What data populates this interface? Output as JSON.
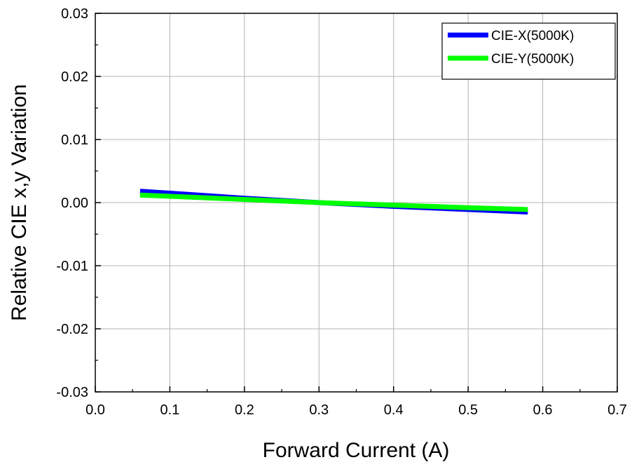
{
  "chart_data": {
    "type": "line",
    "title": "",
    "xlabel": "Forward Current (A)",
    "ylabel": "Relative CIE x,y Variation",
    "xlim": [
      0.0,
      0.7
    ],
    "ylim": [
      -0.03,
      0.03
    ],
    "x_ticks": [
      "0.0",
      "0.1",
      "0.2",
      "0.3",
      "0.4",
      "0.5",
      "0.6",
      "0.7"
    ],
    "y_ticks": [
      "-0.03",
      "-0.02",
      "-0.01",
      "0.00",
      "0.01",
      "0.02",
      "0.03"
    ],
    "grid": true,
    "legend_position": "top-right",
    "series": [
      {
        "name": "CIE-X(5000K)",
        "color": "#0000ff",
        "x": [
          0.06,
          0.1,
          0.2,
          0.3,
          0.4,
          0.5,
          0.58
        ],
        "y": [
          0.0018,
          0.0015,
          0.0007,
          0.0,
          -0.0006,
          -0.0011,
          -0.0015
        ]
      },
      {
        "name": "CIE-Y(5000K)",
        "color": "#00ff00",
        "x": [
          0.06,
          0.1,
          0.2,
          0.3,
          0.4,
          0.5,
          0.58
        ],
        "y": [
          0.0012,
          0.001,
          0.0005,
          0.0,
          -0.0004,
          -0.0008,
          -0.0011
        ]
      }
    ]
  }
}
